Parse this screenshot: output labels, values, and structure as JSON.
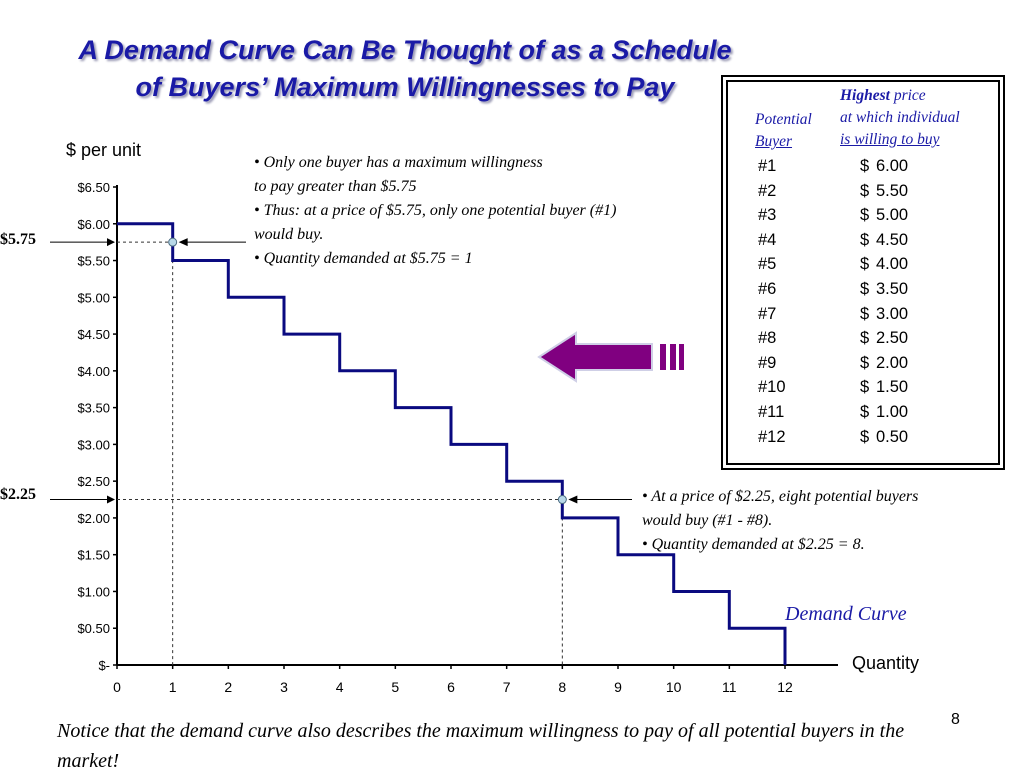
{
  "slide": {
    "title_line1": "A Demand Curve Can Be Thought of as a Schedule",
    "title_line2": "of Buyers’ Maximum Willingnesses to Pay",
    "page_number": "8",
    "note": "Notice that the demand curve also describes the maximum willingness to pay of all potential buyers in the market!",
    "annotation_top": [
      "• Only one buyer has a maximum willingness",
      "to pay greater than $5.75",
      "• Thus: at a price of $5.75, only one potential buyer (#1)",
      "would buy.",
      "• Quantity demanded at $5.75 = 1"
    ],
    "annotation_bottom": [
      "• At a price of $2.25, eight potential buyers",
      "would buy (#1 - #8).",
      "• Quantity demanded at $2.25 = 8."
    ],
    "price_marker_high": "$5.75",
    "price_marker_low": "$2.25",
    "curve_label": "Demand Curve",
    "colors": {
      "title": "#1a1aa6",
      "curve": "#0a0a80",
      "arrow_fill": "#800080",
      "point_fill": "#b8d8e8"
    }
  },
  "table": {
    "header_buyer": [
      "Potential",
      "Buyer"
    ],
    "header_price_bold": "Highest",
    "header_price_rest": "price",
    "header_price_line2": "at which individual",
    "header_price_line3": "is willing to buy",
    "currency_symbol": "$",
    "rows": [
      {
        "buyer": "#1",
        "price": "6.00"
      },
      {
        "buyer": "#2",
        "price": "5.50"
      },
      {
        "buyer": "#3",
        "price": "5.00"
      },
      {
        "buyer": "#4",
        "price": "4.50"
      },
      {
        "buyer": "#5",
        "price": "4.00"
      },
      {
        "buyer": "#6",
        "price": "3.50"
      },
      {
        "buyer": "#7",
        "price": "3.00"
      },
      {
        "buyer": "#8",
        "price": "2.50"
      },
      {
        "buyer": "#9",
        "price": "2.00"
      },
      {
        "buyer": "#10",
        "price": "1.50"
      },
      {
        "buyer": "#11",
        "price": "1.00"
      },
      {
        "buyer": "#12",
        "price": "0.50"
      }
    ]
  },
  "chart_data": {
    "type": "line",
    "step": true,
    "ylabel": "$ per unit",
    "xlabel": "Quantity",
    "x_ticks": [
      "0",
      "1",
      "2",
      "3",
      "4",
      "5",
      "6",
      "7",
      "8",
      "9",
      "10",
      "11",
      "12"
    ],
    "y_ticks": [
      "$-",
      "$0.50",
      "$1.00",
      "$1.50",
      "$2.00",
      "$2.50",
      "$3.00",
      "$3.50",
      "$4.00",
      "$4.50",
      "$5.00",
      "$5.50",
      "$6.00",
      "$6.50"
    ],
    "xlim": [
      0,
      12
    ],
    "ylim": [
      0,
      6.5
    ],
    "series": [
      {
        "x": [
          0,
          1,
          1,
          2,
          2,
          3,
          3,
          4,
          4,
          5,
          5,
          6,
          6,
          7,
          7,
          8,
          8,
          9,
          9,
          10,
          10,
          11,
          11,
          12,
          12
        ],
        "y": [
          6.0,
          6.0,
          5.5,
          5.5,
          5.0,
          5.0,
          4.5,
          4.5,
          4.0,
          4.0,
          3.5,
          3.5,
          3.0,
          3.0,
          2.5,
          2.5,
          2.0,
          2.0,
          1.5,
          1.5,
          1.0,
          1.0,
          0.5,
          0.5,
          0
        ]
      }
    ],
    "highlight_points": [
      {
        "x": 1,
        "y": 5.75
      },
      {
        "x": 8,
        "y": 2.25
      }
    ]
  }
}
